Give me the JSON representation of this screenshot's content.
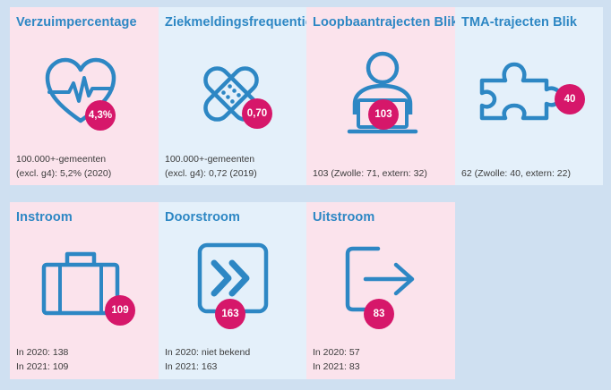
{
  "tiles": [
    {
      "title": "Verzuimpercentage",
      "value": "4,3%",
      "icon": "heart-pulse-icon",
      "notes": [
        "100.000+-gemeenten",
        "(excl. g4): 5,2% (2020)"
      ]
    },
    {
      "title": "Ziekmeldingsfrequentie",
      "value": "0,70",
      "icon": "bandage-icon",
      "notes": [
        "100.000+-gemeenten",
        "(excl. g4): 0,72 (2019)"
      ]
    },
    {
      "title": "Loopbaantrajecten Blik",
      "value": "103",
      "icon": "person-laptop-icon",
      "notes": [
        "103 (Zwolle: 71, extern: 32)"
      ]
    },
    {
      "title": "TMA-trajecten Blik",
      "value": "40",
      "icon": "puzzle-piece-icon",
      "notes": [
        "62 (Zwolle: 40, extern: 22)"
      ]
    },
    {
      "title": "Instroom",
      "value": "109",
      "icon": "briefcase-icon",
      "notes": [
        "In 2020: 138",
        "In 2021: 109"
      ]
    },
    {
      "title": "Doorstroom",
      "value": "163",
      "icon": "fast-forward-icon",
      "notes": [
        "In 2020: niet bekend",
        "In 2021: 163"
      ]
    },
    {
      "title": "Uitstroom",
      "value": "83",
      "icon": "exit-arrow-icon",
      "notes": [
        "In 2020: 57",
        "In 2021: 83"
      ]
    }
  ],
  "colors": {
    "icon": "#2d87c4",
    "badge": "#d6176a",
    "tile_pink": "#fbe3ec",
    "tile_blue": "#e4f0fa",
    "background": "#cfe0f1"
  }
}
